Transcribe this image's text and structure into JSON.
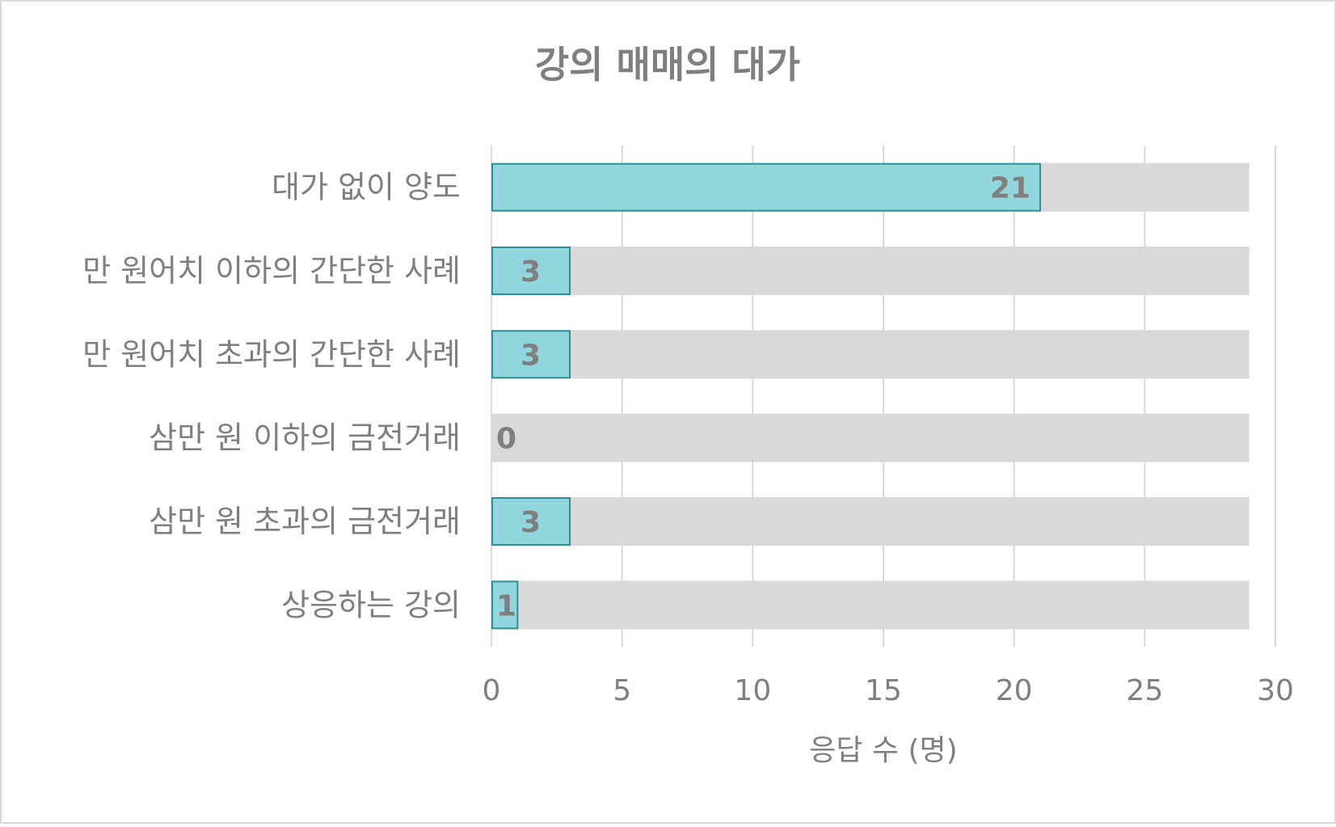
{
  "chart_data": {
    "type": "bar",
    "orientation": "horizontal",
    "stacked_background": true,
    "title": "강의 매매의 대가",
    "xlabel": "응답 수 (명)",
    "ylabel": "",
    "categories": [
      "대가 없이 양도",
      "만 원어치 이하의 간단한 사례",
      "만 원어치 초과의 간단한 사례",
      "삼만 원 이하의 금전거래",
      "삼만 원 초과의 금전거래",
      "상응하는 강의"
    ],
    "series": [
      {
        "values": [
          21,
          3,
          3,
          0,
          3,
          1
        ],
        "color": "#92d6dd",
        "stroke": "#2e8e98"
      },
      {
        "values": [
          29,
          29,
          29,
          29,
          29,
          29
        ],
        "color": "#d9d9d9",
        "role": "total"
      }
    ],
    "data_labels": [
      "21",
      "3",
      "3",
      "0",
      "3",
      "1"
    ],
    "xlim": [
      0,
      30
    ],
    "xticks": [
      0,
      5,
      10,
      15,
      20,
      25,
      30
    ],
    "grid": true,
    "legend": "none"
  }
}
